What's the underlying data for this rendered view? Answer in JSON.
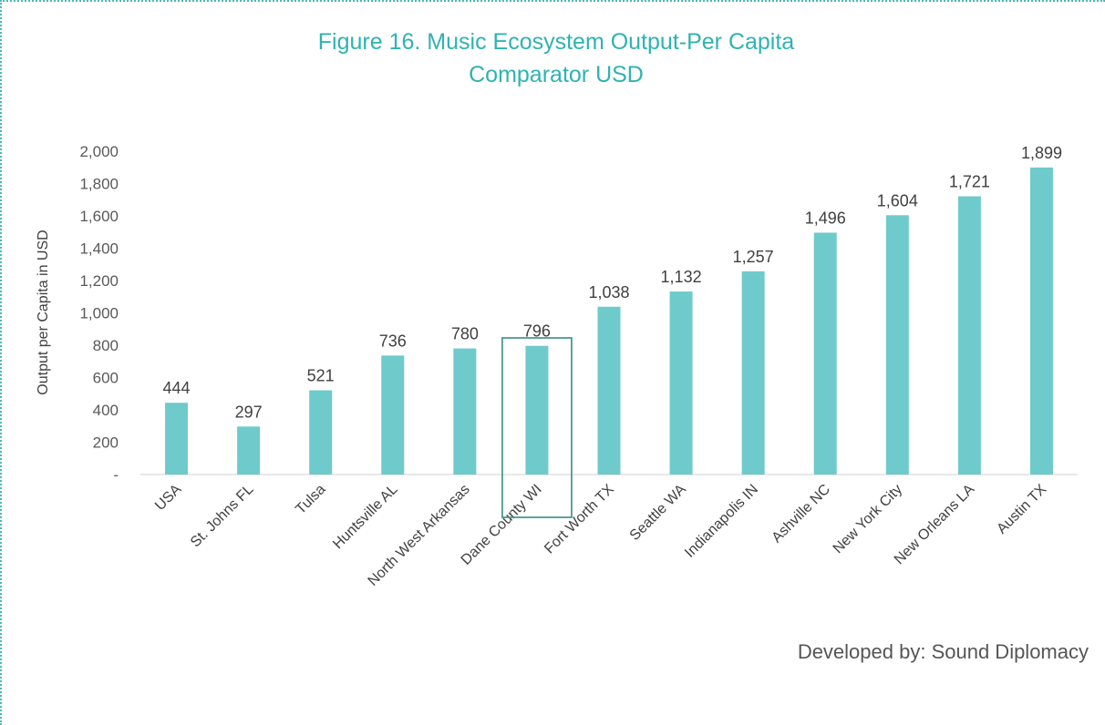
{
  "title_lines": [
    "Figure 16. Music Ecosystem Output-Per Capita",
    "Comparator USD"
  ],
  "credit": "Developed by: Sound Diplomacy",
  "colors": {
    "bar": "#6fcacb",
    "title": "#2fb3b0",
    "highlight_box": "#4a9a92",
    "frame": "#4ab8b4"
  },
  "chart_data": {
    "type": "bar",
    "title": "Figure 16. Music Ecosystem Output-Per Capita Comparator USD",
    "xlabel": "",
    "ylabel": "Output per Capita in USD",
    "categories": [
      "USA",
      "St. Johns FL",
      "Tulsa",
      "Huntsville AL",
      "North West Arkansas",
      "Dane County WI",
      "Fort Worth TX",
      "Seattle WA",
      "Indianapolis IN",
      "Ashville NC",
      "New York City",
      "New Orleans LA",
      "Austin TX"
    ],
    "values": [
      444,
      297,
      521,
      736,
      780,
      796,
      1038,
      1132,
      1257,
      1496,
      1604,
      1721,
      1899
    ],
    "data_labels": [
      "444",
      "297",
      "521",
      "736",
      "780",
      "796",
      "1,038",
      "1,132",
      "1,257",
      "1,496",
      "1,604",
      "1,721",
      "1,899"
    ],
    "ylim": [
      0,
      2000
    ],
    "yticks": [
      0,
      200,
      400,
      600,
      800,
      1000,
      1200,
      1400,
      1600,
      1800,
      2000
    ],
    "ytick_labels": [
      "-",
      "200",
      "400",
      "600",
      "800",
      "1,000",
      "1,200",
      "1,400",
      "1,600",
      "1,800",
      "2,000"
    ],
    "highlighted_category": "Dane County WI",
    "grid": false,
    "legend": "none"
  }
}
